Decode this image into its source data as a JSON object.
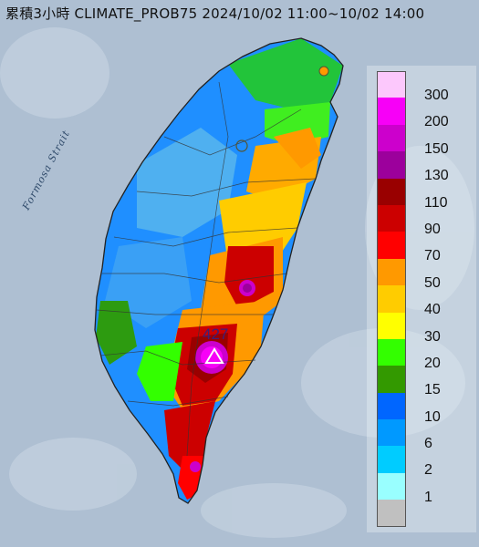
{
  "title": "累積3小時 CLIMATE_PROB75 2024/10/02 11:00~10/02 14:00",
  "strait_label": "Formosa Strait",
  "max_value_label": "427",
  "max_marker_icon": "triangle-icon",
  "legend": [
    {
      "label": "300",
      "color": "#fcc8fc"
    },
    {
      "label": "200",
      "color": "#f700f7"
    },
    {
      "label": "150",
      "color": "#cc00cc"
    },
    {
      "label": "130",
      "color": "#9c009c"
    },
    {
      "label": "110",
      "color": "#990000"
    },
    {
      "label": "90",
      "color": "#cc0000"
    },
    {
      "label": "70",
      "color": "#ff0000"
    },
    {
      "label": "50",
      "color": "#ff9900"
    },
    {
      "label": "40",
      "color": "#ffcc00"
    },
    {
      "label": "30",
      "color": "#ffff00"
    },
    {
      "label": "20",
      "color": "#33ff00"
    },
    {
      "label": "15",
      "color": "#339900"
    },
    {
      "label": "10",
      "color": "#0066ff"
    },
    {
      "label": "6",
      "color": "#0099ff"
    },
    {
      "label": "2",
      "color": "#00ccff"
    },
    {
      "label": "1",
      "color": "#99ffff"
    },
    {
      "label": "",
      "color": "#c0c0c0"
    }
  ]
}
